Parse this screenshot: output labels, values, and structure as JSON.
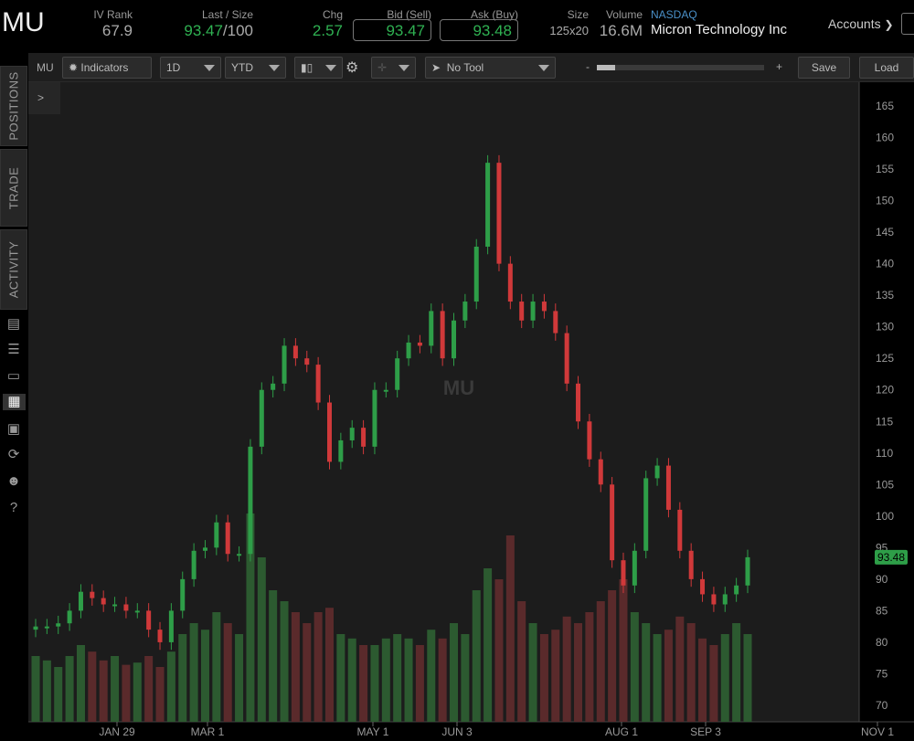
{
  "header": {
    "symbol": "MU",
    "iv_rank_label": "IV Rank",
    "iv_rank": "67.9",
    "last_size_label": "Last / Size",
    "last": "93.47",
    "size": "/100",
    "chg_label": "Chg",
    "chg": "2.57",
    "bid_label": "Bid (Sell)",
    "bid": "93.47",
    "ask_label": "Ask (Buy)",
    "ask": "93.48",
    "size2_label": "Size",
    "size2": "125x20",
    "volume_label": "Volume",
    "volume": "16.6M",
    "exchange": "NASDAQ",
    "company": "Micron Technology Inc",
    "accounts": "Accounts"
  },
  "toolbar": {
    "symbol": "MU",
    "indicators": "Indicators",
    "aggregation": "1D",
    "range": "YTD",
    "tool": "No Tool",
    "zoom_minus": "-",
    "zoom_plus": "+",
    "save": "Save",
    "load": "Load",
    "expand": ">"
  },
  "sidebar": {
    "tabs": [
      "POSITIONS",
      "TRADE",
      "ACTIVITY"
    ],
    "icons": [
      "news-icon",
      "watchlist-icon",
      "tv-icon",
      "chart-icon",
      "grid-icon",
      "history-icon",
      "community-icon",
      "help-icon"
    ]
  },
  "colors": {
    "up": "#2e9e48",
    "down": "#d0393a",
    "vol_up": "#2c5a30",
    "vol_down": "#5a2a2b",
    "accent": "#2fb152",
    "exchange": "#4a90c8"
  },
  "chart_data": {
    "type": "candlestick",
    "watermark": "MU",
    "ylim": [
      68,
      168
    ],
    "y_ticks": [
      165,
      160,
      155,
      150,
      145,
      140,
      135,
      130,
      125,
      120,
      115,
      110,
      105,
      100,
      95,
      90,
      85,
      80,
      75,
      70
    ],
    "x_labels": [
      "JAN 29",
      "MAR 1",
      "MAY 1",
      "JUN 3",
      "AUG 1",
      "SEP 3",
      "NOV 1"
    ],
    "last_price_label": "93.48",
    "closes": [
      82.5,
      82.5,
      83,
      85,
      88,
      87,
      86,
      86,
      85,
      85,
      82,
      80,
      85,
      90,
      94.5,
      95,
      99,
      94,
      94,
      111,
      120,
      121,
      127,
      125,
      124,
      118,
      108.6,
      112,
      114,
      111,
      120,
      120,
      125,
      127.5,
      127,
      132.5,
      125,
      131,
      134,
      142.7,
      156,
      140,
      134,
      131,
      134,
      132.5,
      129,
      121,
      115,
      109,
      105,
      93,
      89,
      94.5,
      106,
      108,
      101,
      94.5,
      90,
      87.6,
      86,
      87.6,
      89,
      93.47
    ],
    "volume_rel": [
      30,
      28,
      25,
      30,
      35,
      32,
      28,
      30,
      26,
      27,
      30,
      25,
      32,
      40,
      45,
      42,
      50,
      45,
      40,
      95,
      75,
      60,
      55,
      50,
      45,
      50,
      52,
      40,
      38,
      35,
      35,
      38,
      40,
      38,
      35,
      42,
      38,
      45,
      40,
      60,
      70,
      65,
      85,
      55,
      45,
      40,
      42,
      48,
      45,
      50,
      55,
      60,
      65,
      50,
      45,
      40,
      42,
      48,
      45,
      38,
      35,
      40,
      45,
      40
    ]
  }
}
